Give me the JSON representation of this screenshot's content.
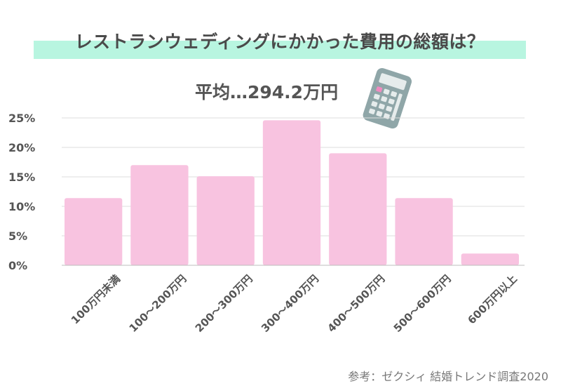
{
  "page": {
    "title": "レストランウェディングにかかった費用の総額は？",
    "average": "平均…294.2万円",
    "source": "参考：ゼクシィ 結婚トレンド調査2020"
  },
  "icons": {
    "calculator": "calculator-icon"
  },
  "colors": {
    "bar": "#f8c3e0",
    "title_band": "#b8f5e0",
    "grid": "#dedede",
    "text": "#555555",
    "calculator_body": "#8fa6a8",
    "calculator_key": "#e6ecec",
    "calculator_accent": "#f08ac0"
  },
  "chart_data": {
    "type": "bar",
    "categories": [
      "100万円未満",
      "100～200万円",
      "200～300万円",
      "300～400万円",
      "400～500万円",
      "500～600万円",
      "600万円以上"
    ],
    "values": [
      11.4,
      17.0,
      15.1,
      24.6,
      19.0,
      11.4,
      2.0
    ],
    "yticks": [
      "0%",
      "5%",
      "10%",
      "15%",
      "20%",
      "25%"
    ],
    "ylim": [
      0,
      25
    ],
    "grid": true,
    "xlabel": "",
    "ylabel": ""
  }
}
